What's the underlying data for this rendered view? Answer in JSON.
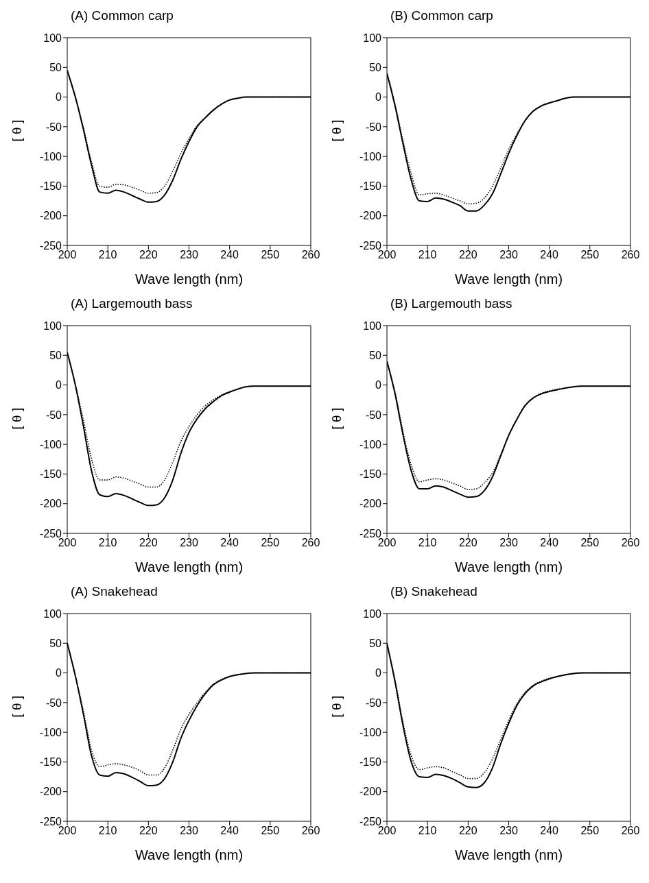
{
  "chart_data": [
    {
      "type": "line",
      "title": "(A) Common carp",
      "xlabel": "Wave length (nm)",
      "ylabel": "[ θ ]",
      "xlim": [
        200,
        260
      ],
      "xticks": [
        200,
        210,
        220,
        230,
        240,
        250,
        260
      ],
      "ylim": [
        -250,
        100
      ],
      "yticks": [
        -250,
        -200,
        -150,
        -100,
        -50,
        0,
        50,
        100
      ],
      "x": [
        200,
        202,
        204,
        206,
        208,
        210,
        212,
        214,
        216,
        218,
        220,
        222,
        224,
        226,
        228,
        230,
        232,
        234,
        236,
        238,
        240,
        242,
        244,
        246,
        248,
        250,
        255,
        260
      ],
      "series": [
        {
          "color": "#000000",
          "line_style": "solid",
          "values": [
            45,
            0,
            -55,
            -115,
            -160,
            -162,
            -157,
            -160,
            -166,
            -172,
            -177,
            -176,
            -165,
            -140,
            -105,
            -75,
            -50,
            -35,
            -22,
            -12,
            -5,
            -2,
            0,
            0,
            0,
            0,
            0,
            0
          ]
        },
        {
          "color": "#000000",
          "line_style": "dotted",
          "values": [
            45,
            0,
            -52,
            -110,
            -150,
            -152,
            -147,
            -148,
            -152,
            -157,
            -162,
            -161,
            -150,
            -125,
            -95,
            -70,
            -48,
            -35,
            -22,
            -12,
            -5,
            -2,
            0,
            0,
            0,
            0,
            0,
            0
          ]
        }
      ]
    },
    {
      "type": "line",
      "title": "(B) Common carp",
      "xlabel": "Wave length (nm)",
      "ylabel": "[ θ ]",
      "xlim": [
        200,
        260
      ],
      "xticks": [
        200,
        210,
        220,
        230,
        240,
        250,
        260
      ],
      "ylim": [
        -250,
        100
      ],
      "yticks": [
        -250,
        -200,
        -150,
        -100,
        -50,
        0,
        50,
        100
      ],
      "x": [
        200,
        202,
        204,
        206,
        208,
        210,
        212,
        214,
        216,
        218,
        220,
        222,
        224,
        226,
        228,
        230,
        232,
        234,
        236,
        238,
        240,
        242,
        244,
        246,
        248,
        250,
        255,
        260
      ],
      "series": [
        {
          "color": "#000000",
          "line_style": "solid",
          "values": [
            40,
            -15,
            -80,
            -140,
            -175,
            -176,
            -170,
            -172,
            -177,
            -183,
            -192,
            -192,
            -182,
            -163,
            -130,
            -95,
            -65,
            -40,
            -24,
            -15,
            -10,
            -6,
            -2,
            0,
            0,
            0,
            0,
            0
          ]
        },
        {
          "color": "#000000",
          "line_style": "dotted",
          "values": [
            40,
            -12,
            -75,
            -130,
            -165,
            -163,
            -162,
            -165,
            -170,
            -175,
            -180,
            -179,
            -170,
            -150,
            -120,
            -88,
            -62,
            -40,
            -24,
            -15,
            -10,
            -6,
            -2,
            0,
            0,
            0,
            0,
            0
          ]
        }
      ]
    },
    {
      "type": "line",
      "title": "(A) Largemouth bass",
      "xlabel": "Wave length (nm)",
      "ylabel": "[ θ ]",
      "xlim": [
        200,
        260
      ],
      "xticks": [
        200,
        210,
        220,
        230,
        240,
        250,
        260
      ],
      "ylim": [
        -250,
        100
      ],
      "yticks": [
        -250,
        -200,
        -150,
        -100,
        -50,
        0,
        50,
        100
      ],
      "x": [
        200,
        202,
        204,
        206,
        208,
        210,
        212,
        214,
        216,
        218,
        220,
        222,
        224,
        226,
        228,
        230,
        232,
        234,
        236,
        238,
        240,
        242,
        244,
        246,
        248,
        250,
        255,
        260
      ],
      "series": [
        {
          "color": "#000000",
          "line_style": "solid",
          "values": [
            55,
            0,
            -70,
            -145,
            -185,
            -188,
            -183,
            -186,
            -192,
            -198,
            -203,
            -202,
            -190,
            -160,
            -115,
            -80,
            -57,
            -40,
            -28,
            -18,
            -12,
            -7,
            -3,
            -2,
            -2,
            -2,
            -2,
            -2
          ]
        },
        {
          "color": "#000000",
          "line_style": "dotted",
          "values": [
            55,
            0,
            -60,
            -125,
            -160,
            -160,
            -155,
            -157,
            -162,
            -167,
            -172,
            -172,
            -160,
            -130,
            -95,
            -70,
            -50,
            -35,
            -25,
            -17,
            -11,
            -7,
            -3,
            -2,
            -2,
            -2,
            -2,
            -2
          ]
        }
      ]
    },
    {
      "type": "line",
      "title": "(B) Largemouth bass",
      "xlabel": "Wave length (nm)",
      "ylabel": "[ θ ]",
      "xlim": [
        200,
        260
      ],
      "xticks": [
        200,
        210,
        220,
        230,
        240,
        250,
        260
      ],
      "ylim": [
        -250,
        100
      ],
      "yticks": [
        -250,
        -200,
        -150,
        -100,
        -50,
        0,
        50,
        100
      ],
      "x": [
        200,
        202,
        204,
        206,
        208,
        210,
        212,
        214,
        216,
        218,
        220,
        222,
        224,
        226,
        228,
        230,
        232,
        234,
        236,
        238,
        240,
        242,
        244,
        246,
        248,
        250,
        255,
        260
      ],
      "series": [
        {
          "color": "#000000",
          "line_style": "solid",
          "values": [
            40,
            -15,
            -85,
            -145,
            -175,
            -175,
            -170,
            -172,
            -178,
            -184,
            -189,
            -188,
            -178,
            -155,
            -120,
            -85,
            -58,
            -35,
            -22,
            -15,
            -11,
            -8,
            -5,
            -3,
            -2,
            -2,
            -2,
            -2
          ]
        },
        {
          "color": "#000000",
          "line_style": "dotted",
          "values": [
            40,
            -12,
            -80,
            -135,
            -163,
            -160,
            -158,
            -160,
            -165,
            -170,
            -176,
            -175,
            -165,
            -148,
            -118,
            -85,
            -58,
            -35,
            -22,
            -14,
            -10,
            -7,
            -5,
            -3,
            -2,
            -2,
            -2,
            -2
          ]
        }
      ]
    },
    {
      "type": "line",
      "title": "(A) Snakehead",
      "xlabel": "Wave length (nm)",
      "ylabel": "[ θ ]",
      "xlim": [
        200,
        260
      ],
      "xticks": [
        200,
        210,
        220,
        230,
        240,
        250,
        260
      ],
      "ylim": [
        -250,
        100
      ],
      "yticks": [
        -250,
        -200,
        -150,
        -100,
        -50,
        0,
        50,
        100
      ],
      "x": [
        200,
        202,
        204,
        206,
        208,
        210,
        212,
        214,
        216,
        218,
        220,
        222,
        224,
        226,
        228,
        230,
        232,
        234,
        236,
        238,
        240,
        242,
        244,
        246,
        248,
        250,
        255,
        260
      ],
      "series": [
        {
          "color": "#000000",
          "line_style": "solid",
          "values": [
            50,
            -5,
            -70,
            -140,
            -172,
            -174,
            -168,
            -170,
            -176,
            -183,
            -190,
            -189,
            -178,
            -150,
            -110,
            -80,
            -55,
            -35,
            -20,
            -12,
            -6,
            -3,
            -1,
            0,
            0,
            0,
            0,
            0
          ]
        },
        {
          "color": "#000000",
          "line_style": "dotted",
          "values": [
            50,
            -5,
            -65,
            -130,
            -158,
            -155,
            -153,
            -155,
            -159,
            -165,
            -172,
            -172,
            -160,
            -130,
            -95,
            -70,
            -50,
            -33,
            -19,
            -11,
            -6,
            -3,
            -1,
            0,
            0,
            0,
            0,
            0
          ]
        }
      ]
    },
    {
      "type": "line",
      "title": "(B) Snakehead",
      "xlabel": "Wave length (nm)",
      "ylabel": "[ θ ]",
      "xlim": [
        200,
        260
      ],
      "xticks": [
        200,
        210,
        220,
        230,
        240,
        250,
        260
      ],
      "ylim": [
        -250,
        100
      ],
      "yticks": [
        -250,
        -200,
        -150,
        -100,
        -50,
        0,
        50,
        100
      ],
      "x": [
        200,
        202,
        204,
        206,
        208,
        210,
        212,
        214,
        216,
        218,
        220,
        222,
        224,
        226,
        228,
        230,
        232,
        234,
        236,
        238,
        240,
        242,
        244,
        246,
        248,
        250,
        255,
        260
      ],
      "series": [
        {
          "color": "#000000",
          "line_style": "solid",
          "values": [
            50,
            -15,
            -90,
            -150,
            -175,
            -176,
            -171,
            -173,
            -178,
            -185,
            -192,
            -193,
            -185,
            -160,
            -120,
            -85,
            -55,
            -35,
            -22,
            -15,
            -10,
            -6,
            -3,
            -1,
            0,
            0,
            0,
            0
          ]
        },
        {
          "color": "#000000",
          "line_style": "dotted",
          "values": [
            50,
            -12,
            -85,
            -140,
            -163,
            -160,
            -158,
            -160,
            -166,
            -172,
            -178,
            -178,
            -168,
            -145,
            -112,
            -80,
            -52,
            -33,
            -21,
            -14,
            -9,
            -6,
            -3,
            -1,
            0,
            0,
            0,
            0
          ]
        }
      ]
    }
  ]
}
